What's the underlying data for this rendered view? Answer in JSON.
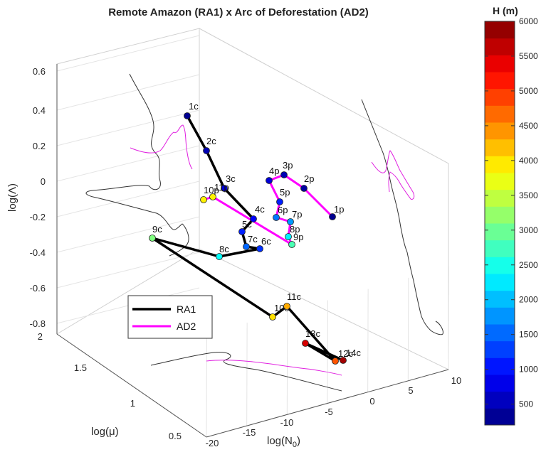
{
  "chart_data": {
    "type": "3d-line",
    "title": "Remote Amazon (RA1) x Arc of Deforestation (AD2)",
    "xlabel": "log(N",
    "xlabel_sub": "0",
    "ylabel": "log(μ)",
    "zlabel": "log(Λ)",
    "x_ticks": [
      "-20",
      "-15",
      "-10",
      "-5",
      "0",
      "5",
      "10"
    ],
    "y_ticks": [
      "0.5",
      "1",
      "1.5",
      "2"
    ],
    "z_ticks": [
      "-0.8",
      "-0.6",
      "-0.4",
      "-0.2",
      "0",
      "0.2",
      "0.4",
      "0.6"
    ],
    "grid": true,
    "legend_position": "lower-left",
    "colorbar": {
      "title": "H (m)",
      "ticks": [
        "500",
        "1000",
        "1500",
        "2000",
        "2500",
        "3000",
        "3500",
        "4000",
        "4500",
        "5000",
        "5500",
        "6000"
      ],
      "colormap": "jet",
      "range": [
        200,
        6000
      ]
    },
    "series": [
      {
        "name": "RA1",
        "color": "#000000",
        "points": [
          {
            "label": "1c",
            "h": 300
          },
          {
            "label": "2c",
            "h": 500
          },
          {
            "label": "3c",
            "h": 700
          },
          {
            "label": "4c",
            "h": 900
          },
          {
            "label": "5c",
            "h": 1100
          },
          {
            "label": "6c",
            "h": 1200
          },
          {
            "label": "7c",
            "h": 1500
          },
          {
            "label": "8c",
            "h": 2400
          },
          {
            "label": "9c",
            "h": 3100
          },
          {
            "label": "10c",
            "h": 4000
          },
          {
            "label": "11c",
            "h": 4300
          },
          {
            "label": "12c",
            "h": 4800
          },
          {
            "label": "13c",
            "h": 5500
          },
          {
            "label": "14c",
            "h": 5800
          }
        ]
      },
      {
        "name": "AD2",
        "color": "#ff00ff",
        "points": [
          {
            "label": "1p",
            "h": 300
          },
          {
            "label": "2p",
            "h": 400
          },
          {
            "label": "3p",
            "h": 500
          },
          {
            "label": "4p",
            "h": 700
          },
          {
            "label": "5p",
            "h": 1100
          },
          {
            "label": "6p",
            "h": 1600
          },
          {
            "label": "7p",
            "h": 1800
          },
          {
            "label": "8p",
            "h": 2300
          },
          {
            "label": "9p",
            "h": 2800
          },
          {
            "label": "10p",
            "h": 3900
          },
          {
            "label": "11p",
            "h": 3900
          }
        ]
      }
    ]
  }
}
